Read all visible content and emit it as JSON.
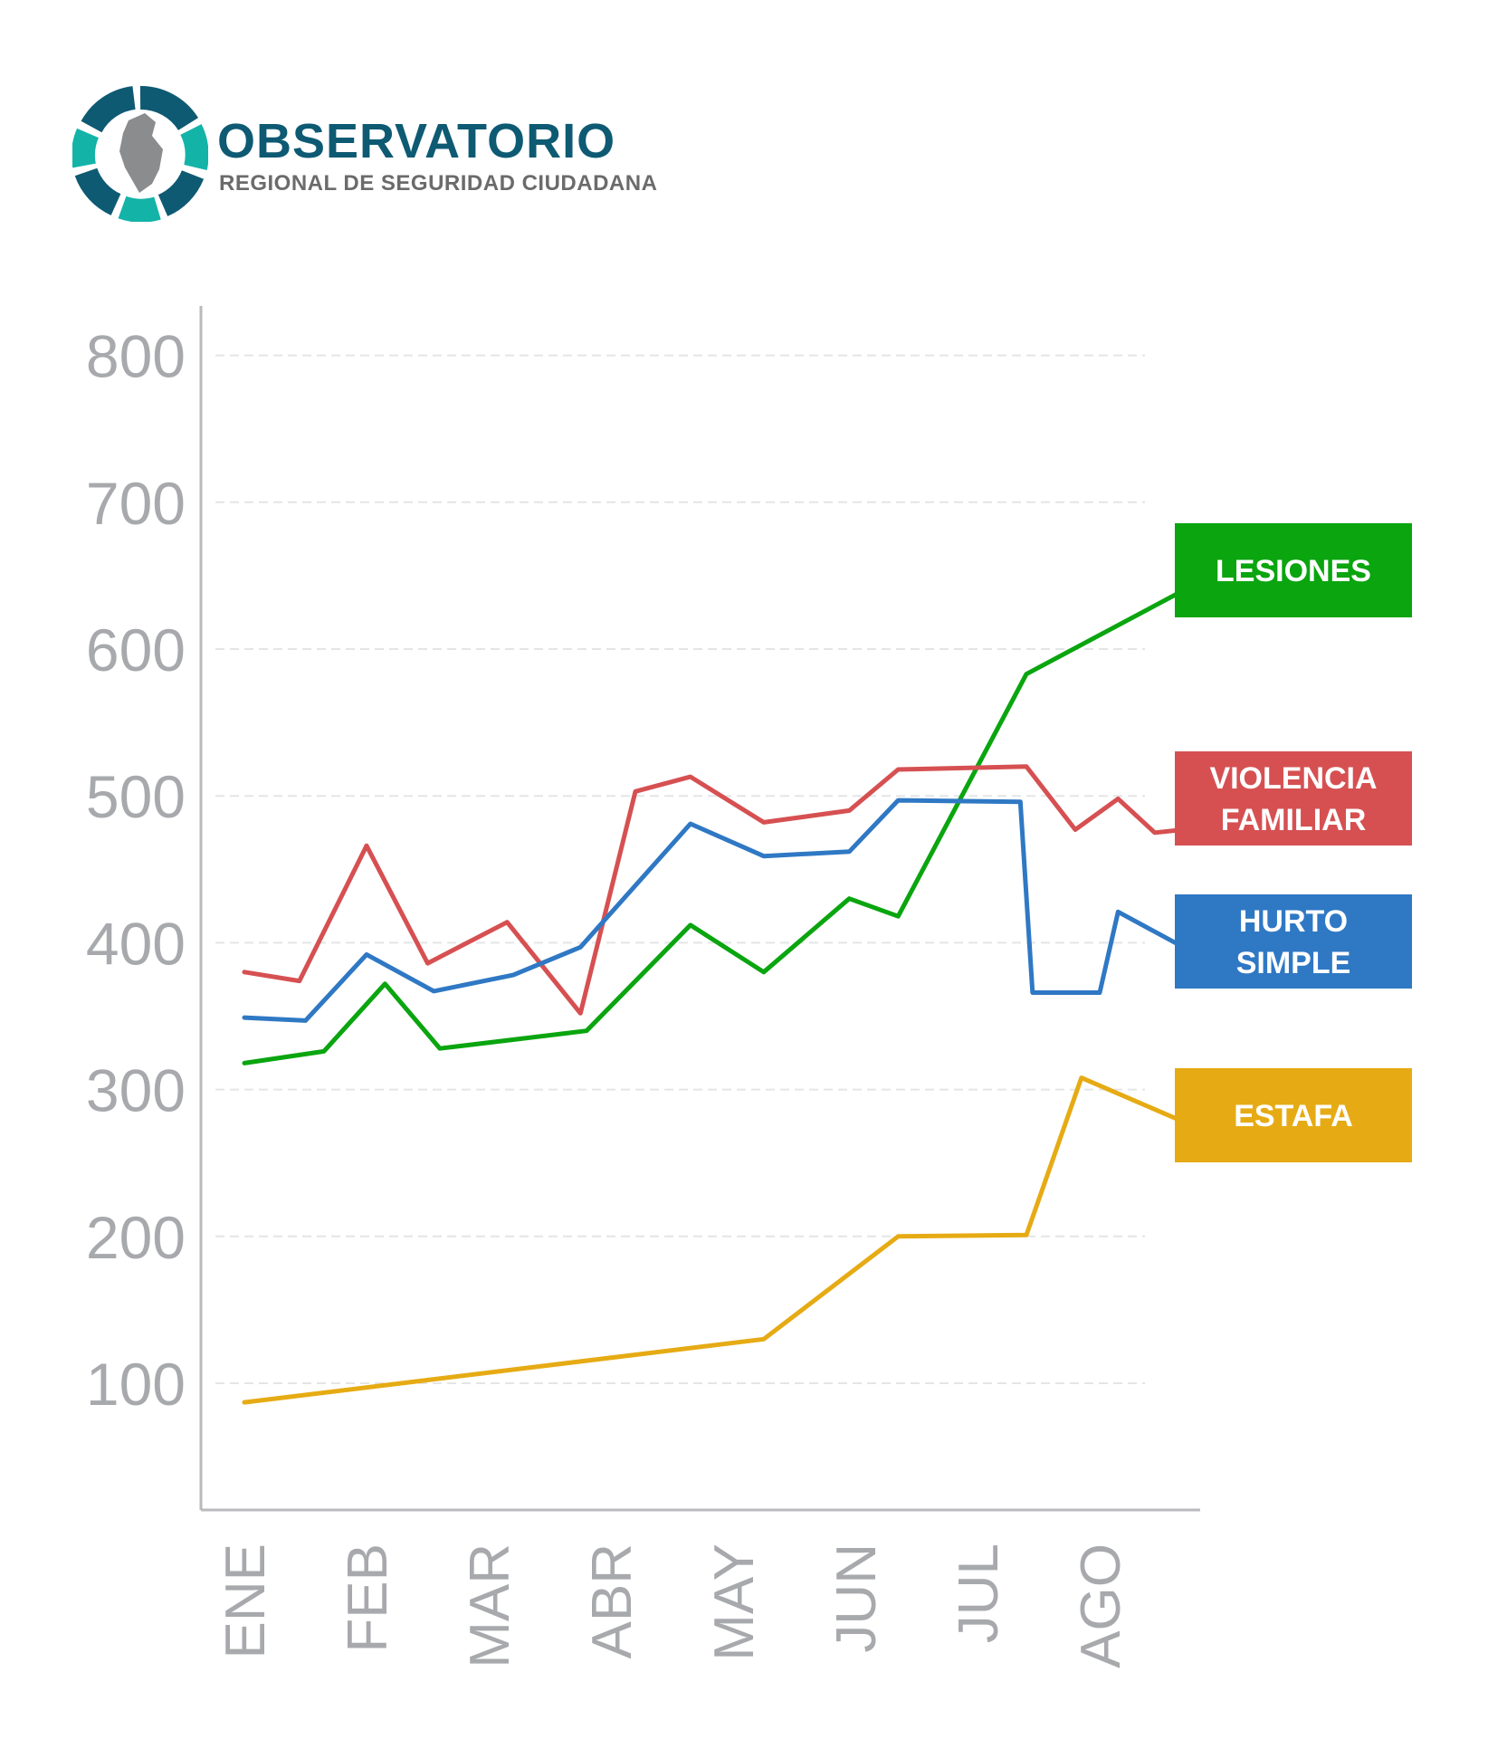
{
  "header": {
    "logo_title": "OBSERVATORIO",
    "logo_subtitle": "REGIONAL DE SEGURIDAD CIUDADANA"
  },
  "chart_data": {
    "type": "line",
    "categories": [
      "ENE",
      "FEB",
      "MAR",
      "ABR",
      "MAY",
      "JUN",
      "JUL",
      "AGO"
    ],
    "yticks": [
      100,
      200,
      300,
      400,
      500,
      600,
      700,
      800
    ],
    "ylim": [
      0,
      800
    ],
    "grid": true,
    "legend_placement": "right",
    "series": [
      {
        "name": "LESIONES",
        "color": "#0aa50f",
        "points": [
          [
            0,
            318
          ],
          [
            0.65,
            326
          ],
          [
            1.15,
            372
          ],
          [
            1.6,
            328
          ],
          [
            2.8,
            340
          ],
          [
            3.65,
            412
          ],
          [
            4.25,
            380
          ],
          [
            4.95,
            430
          ],
          [
            5.35,
            418
          ],
          [
            6.4,
            583
          ],
          [
            7.8,
            645
          ]
        ]
      },
      {
        "name": "VIOLENCIA FAMILIAR",
        "color": "#d65052",
        "points": [
          [
            0,
            380
          ],
          [
            0.45,
            374
          ],
          [
            1.0,
            466
          ],
          [
            1.5,
            386
          ],
          [
            2.15,
            414
          ],
          [
            2.75,
            352
          ],
          [
            3.2,
            503
          ],
          [
            3.65,
            513
          ],
          [
            4.25,
            482
          ],
          [
            4.95,
            490
          ],
          [
            5.35,
            518
          ],
          [
            6.4,
            520
          ],
          [
            6.8,
            477
          ],
          [
            7.15,
            498
          ],
          [
            7.45,
            475
          ],
          [
            7.8,
            478
          ]
        ]
      },
      {
        "name": "HURTO SIMPLE",
        "color": "#2f78c4",
        "points": [
          [
            0,
            349
          ],
          [
            0.5,
            347
          ],
          [
            1.0,
            392
          ],
          [
            1.55,
            367
          ],
          [
            2.2,
            378
          ],
          [
            2.75,
            397
          ],
          [
            3.65,
            481
          ],
          [
            4.25,
            459
          ],
          [
            4.95,
            462
          ],
          [
            5.35,
            497
          ],
          [
            6.35,
            496
          ],
          [
            6.45,
            366
          ],
          [
            7.0,
            366
          ],
          [
            7.15,
            421
          ],
          [
            7.75,
            394
          ]
        ]
      },
      {
        "name": "ESTAFA",
        "color": "#e6ab14",
        "points": [
          [
            0,
            87
          ],
          [
            4.25,
            130
          ],
          [
            5.35,
            200
          ],
          [
            6.4,
            201
          ],
          [
            6.85,
            308
          ],
          [
            7.8,
            274
          ]
        ]
      }
    ]
  }
}
